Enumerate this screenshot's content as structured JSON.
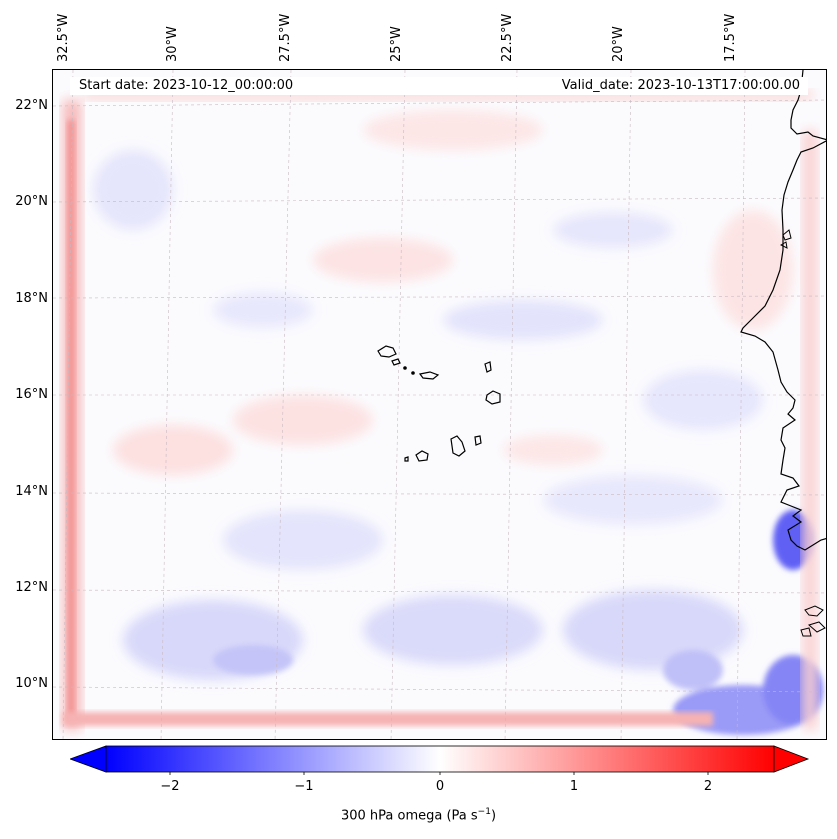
{
  "header": {
    "start_date": "Start date: 2023-10-12_00:00:00",
    "valid_date": "Valid_date: 2023-10-13T17:00:00.00"
  },
  "map": {
    "field": "300 hPa omega",
    "longitude_labels": [
      "32.5°W",
      "30°W",
      "27.5°W",
      "25°W",
      "22.5°W",
      "20°W",
      "17.5°W"
    ],
    "latitude_labels": [
      "22°N",
      "20°N",
      "18°N",
      "16°N",
      "14°N",
      "12°N",
      "10°N"
    ],
    "features": [
      "coastline-africa-icon",
      "cape-verde-islands-icon"
    ]
  },
  "colorbar": {
    "title_prefix": "300 hPa omega (Pa s",
    "title_exp": "−1",
    "title_suffix": ")",
    "tick_labels": [
      "−2",
      "−1",
      "0",
      "1",
      "2"
    ],
    "colormap": "bwr",
    "min_color": "#0000ff",
    "mid_color": "#ffffff",
    "max_color": "#ff0000",
    "extend": "both"
  }
}
